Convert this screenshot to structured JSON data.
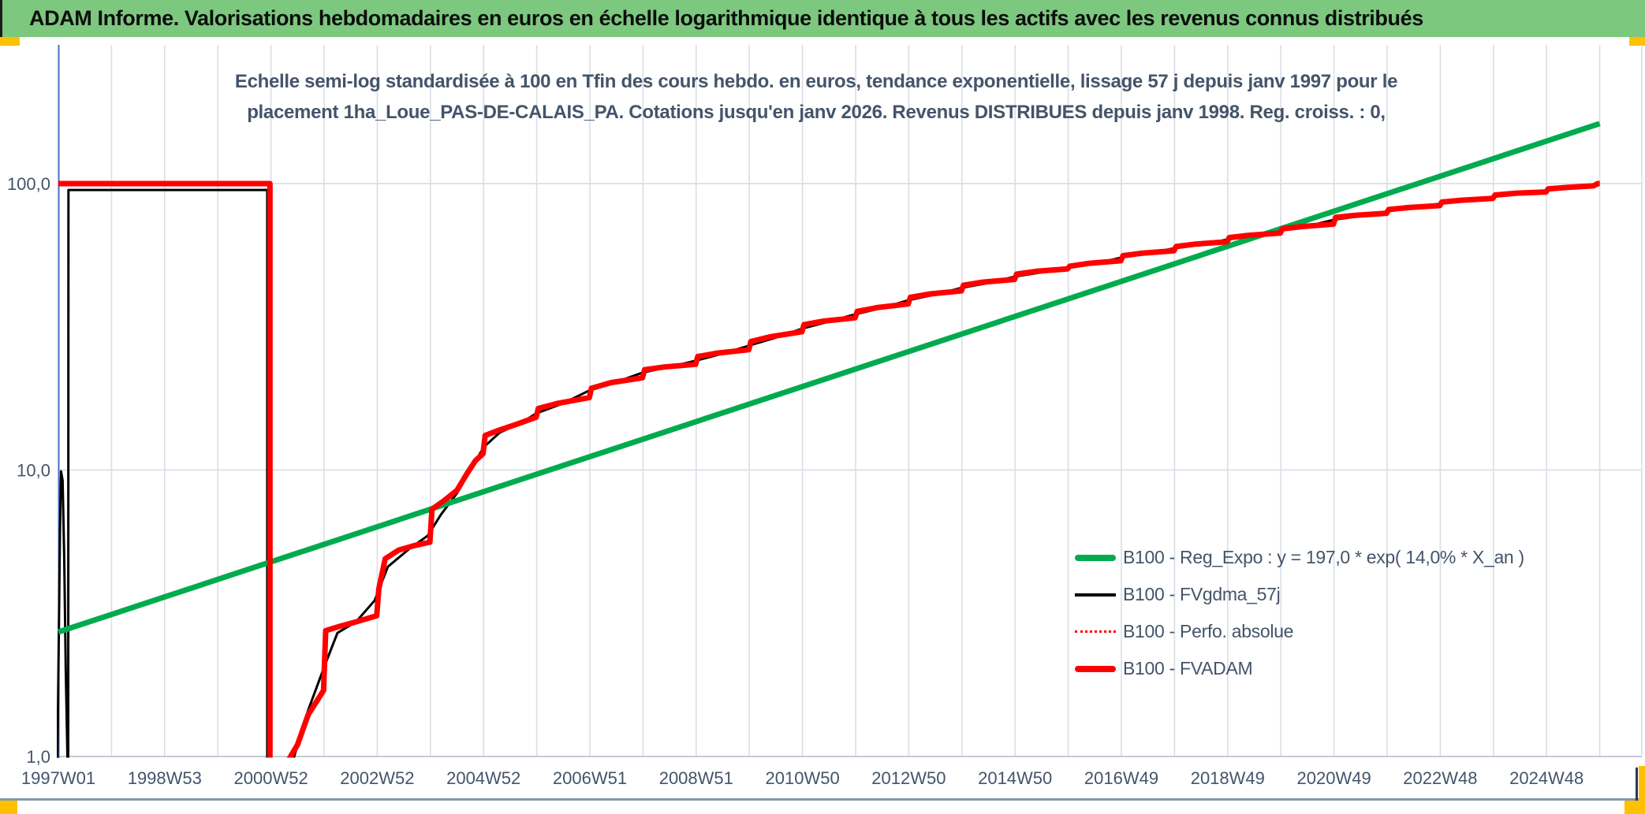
{
  "header": {
    "title": "ADAM Informe. Valorisations hebdomadaires en euros en échelle logarithmique identique à tous les actifs avec les revenus connus distribués",
    "bar_color": "#7CC87E",
    "accent_color": "#FFC000"
  },
  "chart": {
    "subtitle_line1": "Echelle semi-log standardisée à 100 en Tfin des cours hebdo. en euros, tendance exponentielle, lissage 57 j depuis janv 1997 pour le",
    "subtitle_line2": "placement 1ha_Loue_PAS-DE-CALAIS_PA. Cotations jusqu'en janv 2026. Revenus DISTRIBUES depuis janv 1998. Reg. croiss. : 0,",
    "legend": [
      {
        "label": "B100 - Reg_Expo : y = 197,0 * exp( 14,0% *  X_an )",
        "color": "#00AB4E",
        "style": "solid-thick"
      },
      {
        "label": "B100 - FVgdma_57j",
        "color": "#000000",
        "style": "solid-thin"
      },
      {
        "label": "B100 - Perfo. absolue",
        "color": "#FF0000",
        "style": "dotted"
      },
      {
        "label": "B100 - FVADAM",
        "color": "#FF0000",
        "style": "solid-thick"
      }
    ]
  },
  "chart_data": {
    "type": "line",
    "title": "Echelle semi-log standardisée à 100 en Tfin des cours hebdo. en euros, tendance exponentielle, lissage 57 j depuis janv 1997 pour le placement 1ha_Loue_PAS-DE-CALAIS_PA. Cotations jusqu'en janv 2026. Revenus DISTRIBUES depuis janv 1998. Reg. croiss. : 0,",
    "grid": true,
    "grid_color": "#DADEE5",
    "legend_position": "inside-right",
    "x_axis": {
      "unit": "ISO week (yearWweek)",
      "min_year": 1997.0,
      "max_year": 2026.6,
      "axis_color": "#4472C4",
      "gridline_years_step": 1,
      "ticks": [
        {
          "label": "1997W01",
          "year": 1997.0
        },
        {
          "label": "1998W53",
          "year": 1999.0
        },
        {
          "label": "2000W52",
          "year": 2001.0
        },
        {
          "label": "2002W52",
          "year": 2003.0
        },
        {
          "label": "2004W52",
          "year": 2005.0
        },
        {
          "label": "2006W51",
          "year": 2007.0
        },
        {
          "label": "2008W51",
          "year": 2009.0
        },
        {
          "label": "2010W50",
          "year": 2011.0
        },
        {
          "label": "2012W50",
          "year": 2013.0
        },
        {
          "label": "2014W50",
          "year": 2015.0
        },
        {
          "label": "2016W49",
          "year": 2017.0
        },
        {
          "label": "2018W49",
          "year": 2019.0
        },
        {
          "label": "2020W49",
          "year": 2021.0
        },
        {
          "label": "2022W48",
          "year": 2023.0
        },
        {
          "label": "2024W48",
          "year": 2025.0
        }
      ]
    },
    "y_axis": {
      "scale": "log10",
      "min": 1.0,
      "max": 180,
      "gridlines": [
        10,
        100
      ],
      "ticks": [
        {
          "label": "100,0",
          "value": 100
        },
        {
          "label": "10,0",
          "value": 10
        },
        {
          "label": "1,0",
          "value": 1
        }
      ]
    },
    "series": [
      {
        "name": "B100 - FVgdma_57j",
        "slug": "fvgdma-57j",
        "color": "#000000",
        "width": 3,
        "points": [
          [
            1996.98,
            0.9
          ],
          [
            1997.03,
            6.0
          ],
          [
            1997.05,
            9.9
          ],
          [
            1997.08,
            9.2
          ],
          [
            1997.11,
            5.0
          ],
          [
            1997.14,
            2.0
          ],
          [
            1997.17,
            1.0
          ],
          [
            1997.185,
            0.82
          ],
          [
            1997.19,
            95
          ],
          [
            2000.93,
            95
          ],
          [
            2000.93,
            0.8
          ],
          [
            2001.4,
            0.95
          ],
          [
            2001.7,
            1.45
          ],
          [
            2002.0,
            2.05
          ],
          [
            2002.25,
            2.7
          ],
          [
            2002.6,
            2.95
          ],
          [
            2002.95,
            3.5
          ],
          [
            2003.2,
            4.6
          ],
          [
            2003.6,
            5.3
          ],
          [
            2003.95,
            5.9
          ],
          [
            2004.2,
            7.0
          ],
          [
            2004.5,
            8.3
          ],
          [
            2004.75,
            10.0
          ],
          [
            2005.0,
            12.0
          ],
          [
            2005.3,
            13.5
          ],
          [
            2005.7,
            14.6
          ],
          [
            2006.0,
            15.8
          ],
          [
            2006.5,
            17.1
          ],
          [
            2007.0,
            19.0
          ],
          [
            2007.5,
            20.3
          ],
          [
            2008.0,
            21.9
          ],
          [
            2008.5,
            22.9
          ],
          [
            2009.0,
            24.1
          ],
          [
            2009.5,
            25.5
          ],
          [
            2010.0,
            27.2
          ],
          [
            2010.5,
            29.0
          ],
          [
            2011.0,
            31.2
          ],
          [
            2011.5,
            33.0
          ],
          [
            2012.0,
            35.0
          ],
          [
            2012.5,
            36.8
          ],
          [
            2013.0,
            39.2
          ],
          [
            2013.5,
            41.0
          ],
          [
            2014.0,
            43.3
          ],
          [
            2014.5,
            45.0
          ],
          [
            2015.0,
            47.4
          ],
          [
            2015.5,
            49.0
          ],
          [
            2016.0,
            50.8
          ],
          [
            2016.5,
            52.5
          ],
          [
            2017.0,
            55.2
          ],
          [
            2017.5,
            57.0
          ],
          [
            2018.0,
            59.5
          ],
          [
            2018.5,
            61.2
          ],
          [
            2019.0,
            63.8
          ],
          [
            2019.5,
            65.5
          ],
          [
            2020.0,
            68.5
          ],
          [
            2020.5,
            71.0
          ],
          [
            2021.0,
            74.8
          ],
          [
            2021.5,
            77.0
          ],
          [
            2022.0,
            80.0
          ],
          [
            2022.5,
            82.2
          ],
          [
            2023.0,
            85.2
          ],
          [
            2023.5,
            87.2
          ],
          [
            2024.0,
            90.0
          ],
          [
            2024.5,
            91.8
          ],
          [
            2025.0,
            94.5
          ],
          [
            2025.5,
            96.8
          ],
          [
            2025.95,
            99.5
          ]
        ]
      },
      {
        "name": "B100 - Reg_Expo : y = 197,0 * exp( 14,0% *  X_an )",
        "slug": "reg-expo",
        "color": "#00AB4E",
        "width": 7,
        "equation": "y = 197,0 * exp( 14,0% * X_an )",
        "points": [
          [
            1997.0,
            2.72
          ],
          [
            2026.0,
            162
          ]
        ]
      },
      {
        "name": "B100 - Perfo. absolue",
        "slug": "perfo-absolue",
        "color": "#FF0000",
        "width": 2.5,
        "dash": "2 5",
        "points_same_as": "B100 - FVADAM"
      },
      {
        "name": "B100 - FVADAM",
        "slug": "fvadam",
        "color": "#FF0000",
        "width": 7,
        "points": [
          [
            1997.0,
            100
          ],
          [
            2000.98,
            100
          ],
          [
            2000.98,
            0.75
          ],
          [
            2001.3,
            0.95
          ],
          [
            2001.5,
            1.1
          ],
          [
            2001.7,
            1.4
          ],
          [
            2001.9,
            1.6
          ],
          [
            2001.99,
            1.7
          ],
          [
            2002.03,
            2.75
          ],
          [
            2002.3,
            2.85
          ],
          [
            2002.6,
            2.95
          ],
          [
            2002.99,
            3.1
          ],
          [
            2003.03,
            3.85
          ],
          [
            2003.15,
            4.9
          ],
          [
            2003.4,
            5.25
          ],
          [
            2003.7,
            5.45
          ],
          [
            2003.99,
            5.6
          ],
          [
            2004.03,
            7.3
          ],
          [
            2004.25,
            7.8
          ],
          [
            2004.5,
            8.5
          ],
          [
            2004.7,
            9.8
          ],
          [
            2004.85,
            10.8
          ],
          [
            2004.99,
            11.4
          ],
          [
            2005.03,
            13.2
          ],
          [
            2005.3,
            13.8
          ],
          [
            2005.6,
            14.4
          ],
          [
            2005.99,
            15.3
          ],
          [
            2006.03,
            16.4
          ],
          [
            2006.4,
            17.1
          ],
          [
            2006.99,
            17.9
          ],
          [
            2007.03,
            19.3
          ],
          [
            2007.4,
            20.2
          ],
          [
            2007.99,
            21.0
          ],
          [
            2008.03,
            22.4
          ],
          [
            2008.4,
            22.9
          ],
          [
            2008.99,
            23.4
          ],
          [
            2009.03,
            24.9
          ],
          [
            2009.4,
            25.6
          ],
          [
            2009.99,
            26.3
          ],
          [
            2010.03,
            28.1
          ],
          [
            2010.4,
            29.2
          ],
          [
            2010.99,
            30.4
          ],
          [
            2011.03,
            32.2
          ],
          [
            2011.4,
            33.1
          ],
          [
            2011.99,
            34.0
          ],
          [
            2012.03,
            35.8
          ],
          [
            2012.4,
            36.9
          ],
          [
            2012.99,
            38.0
          ],
          [
            2013.03,
            40.1
          ],
          [
            2013.4,
            41.2
          ],
          [
            2013.99,
            42.2
          ],
          [
            2014.03,
            44.2
          ],
          [
            2014.4,
            45.3
          ],
          [
            2014.99,
            46.3
          ],
          [
            2015.03,
            48.3
          ],
          [
            2015.4,
            49.4
          ],
          [
            2015.99,
            50.4
          ],
          [
            2016.03,
            51.5
          ],
          [
            2016.4,
            52.7
          ],
          [
            2016.99,
            53.8
          ],
          [
            2017.03,
            56.0
          ],
          [
            2017.4,
            57.2
          ],
          [
            2017.99,
            58.3
          ],
          [
            2018.03,
            60.3
          ],
          [
            2018.4,
            61.5
          ],
          [
            2018.99,
            62.6
          ],
          [
            2019.03,
            64.8
          ],
          [
            2019.4,
            66.0
          ],
          [
            2019.99,
            67.2
          ],
          [
            2020.03,
            69.5
          ],
          [
            2020.4,
            70.8
          ],
          [
            2020.99,
            72.2
          ],
          [
            2021.03,
            76.2
          ],
          [
            2021.4,
            77.5
          ],
          [
            2021.99,
            78.8
          ],
          [
            2022.03,
            81.2
          ],
          [
            2022.4,
            82.5
          ],
          [
            2022.99,
            83.8
          ],
          [
            2023.03,
            86.2
          ],
          [
            2023.4,
            87.5
          ],
          [
            2023.99,
            88.8
          ],
          [
            2024.03,
            91.2
          ],
          [
            2024.4,
            92.5
          ],
          [
            2024.99,
            93.5
          ],
          [
            2025.03,
            95.8
          ],
          [
            2025.4,
            97.0
          ],
          [
            2025.88,
            98.2
          ],
          [
            2025.96,
            100.0
          ],
          [
            2026.0,
            100.0
          ]
        ]
      }
    ]
  }
}
